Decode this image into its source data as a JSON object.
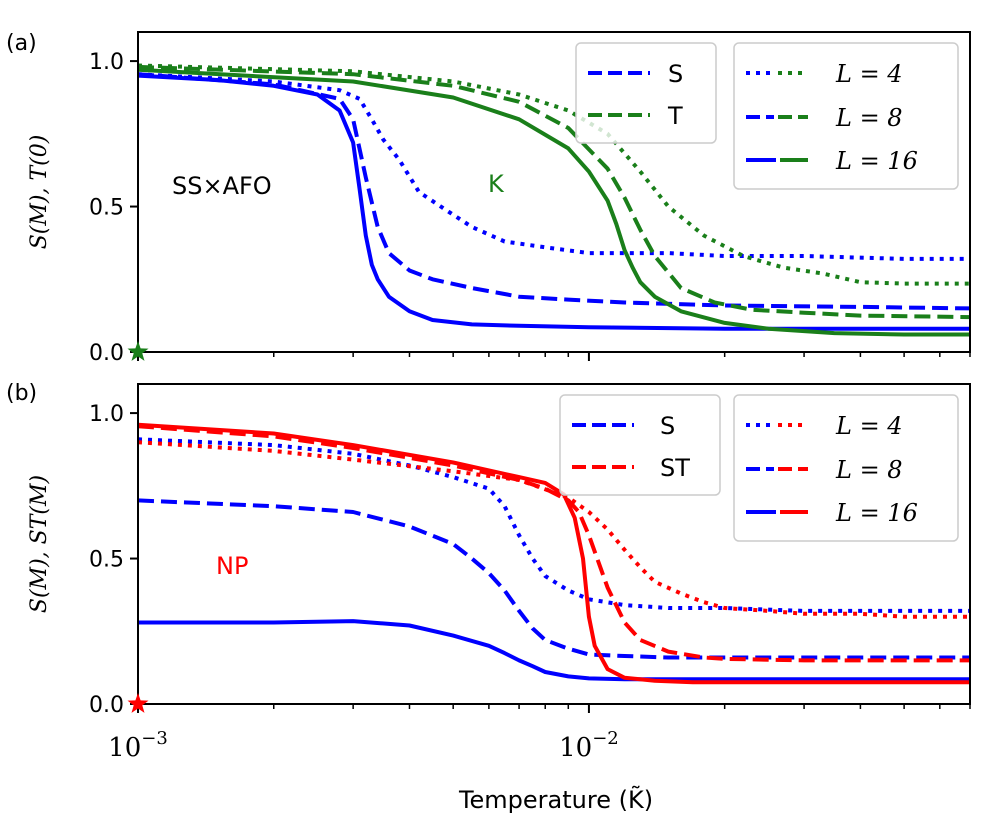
{
  "chart_data": [
    {
      "type": "line",
      "panel_label": "(a)",
      "ylabel": "S(M), T(0)",
      "ylim": [
        0,
        1.1
      ],
      "yticks": [
        "0.0",
        "0.5",
        "1.0"
      ],
      "xscale": "log",
      "xlim": [
        0.001,
        0.07
      ],
      "annotations": [
        {
          "text": "SS×AFO",
          "color": "#000000"
        },
        {
          "text": "K",
          "color": "#1a7f1a"
        }
      ],
      "star": {
        "x": 0.001,
        "y": 0.0,
        "color": "#1a7f1a"
      },
      "legend_quantity": [
        {
          "label": "S",
          "style": "dashed",
          "color": "#0000ff"
        },
        {
          "label": "T",
          "style": "dashed",
          "color": "#1a7f1a"
        }
      ],
      "legend_size": [
        {
          "label": "L = 4",
          "style": "dotted"
        },
        {
          "label": "L = 8",
          "style": "dashed"
        },
        {
          "label": "L = 16",
          "style": "solid"
        }
      ],
      "series": [
        {
          "name": "S, L=4",
          "color": "#0000ff",
          "style": "dotted",
          "x": [
            0.001,
            0.002,
            0.0028,
            0.0031,
            0.0033,
            0.0035,
            0.0038,
            0.0042,
            0.0048,
            0.0055,
            0.0065,
            0.008,
            0.01,
            0.015,
            0.02,
            0.03,
            0.05,
            0.07
          ],
          "y": [
            0.955,
            0.93,
            0.9,
            0.87,
            0.8,
            0.73,
            0.66,
            0.55,
            0.49,
            0.43,
            0.38,
            0.36,
            0.34,
            0.34,
            0.33,
            0.33,
            0.32,
            0.32
          ]
        },
        {
          "name": "S, L=8",
          "color": "#0000ff",
          "style": "dashed",
          "x": [
            0.001,
            0.002,
            0.0028,
            0.003,
            0.0032,
            0.0034,
            0.0036,
            0.004,
            0.0045,
            0.0055,
            0.007,
            0.009,
            0.012,
            0.02,
            0.04,
            0.07
          ],
          "y": [
            0.955,
            0.92,
            0.87,
            0.8,
            0.6,
            0.43,
            0.34,
            0.28,
            0.25,
            0.22,
            0.19,
            0.18,
            0.17,
            0.16,
            0.155,
            0.15
          ]
        },
        {
          "name": "S, L=16",
          "color": "#0000ff",
          "style": "solid",
          "x": [
            0.001,
            0.0015,
            0.002,
            0.0025,
            0.0028,
            0.003,
            0.0031,
            0.0032,
            0.0033,
            0.0034,
            0.0036,
            0.004,
            0.0045,
            0.0055,
            0.007,
            0.01,
            0.02,
            0.04,
            0.07
          ],
          "y": [
            0.95,
            0.935,
            0.915,
            0.885,
            0.83,
            0.72,
            0.56,
            0.4,
            0.3,
            0.25,
            0.19,
            0.14,
            0.11,
            0.095,
            0.09,
            0.085,
            0.08,
            0.08,
            0.08
          ]
        },
        {
          "name": "T, L=4",
          "color": "#1a7f1a",
          "style": "dotted",
          "x": [
            0.001,
            0.003,
            0.005,
            0.007,
            0.009,
            0.011,
            0.013,
            0.015,
            0.018,
            0.022,
            0.027,
            0.033,
            0.04,
            0.05,
            0.07
          ],
          "y": [
            0.985,
            0.965,
            0.93,
            0.885,
            0.83,
            0.75,
            0.62,
            0.5,
            0.4,
            0.33,
            0.29,
            0.27,
            0.24,
            0.235,
            0.235
          ]
        },
        {
          "name": "T, L=8",
          "color": "#1a7f1a",
          "style": "dashed",
          "x": [
            0.001,
            0.003,
            0.005,
            0.007,
            0.009,
            0.011,
            0.012,
            0.013,
            0.014,
            0.016,
            0.019,
            0.023,
            0.03,
            0.04,
            0.07
          ],
          "y": [
            0.98,
            0.955,
            0.915,
            0.86,
            0.77,
            0.63,
            0.53,
            0.42,
            0.33,
            0.22,
            0.17,
            0.145,
            0.135,
            0.125,
            0.12
          ]
        },
        {
          "name": "T, L=16",
          "color": "#1a7f1a",
          "style": "solid",
          "x": [
            0.001,
            0.003,
            0.005,
            0.007,
            0.009,
            0.01,
            0.011,
            0.0115,
            0.012,
            0.0125,
            0.013,
            0.014,
            0.016,
            0.02,
            0.025,
            0.035,
            0.05,
            0.07
          ],
          "y": [
            0.97,
            0.93,
            0.875,
            0.8,
            0.7,
            0.62,
            0.52,
            0.44,
            0.35,
            0.29,
            0.24,
            0.19,
            0.14,
            0.1,
            0.08,
            0.065,
            0.06,
            0.06
          ]
        }
      ]
    },
    {
      "type": "line",
      "panel_label": "(b)",
      "ylabel": "S(M), ST(M)",
      "ylim": [
        0,
        1.1
      ],
      "yticks": [
        "0.0",
        "0.5",
        "1.0"
      ],
      "xscale": "log",
      "xlim": [
        0.001,
        0.07
      ],
      "xticks": [
        "10^-3",
        "10^-2"
      ],
      "xlabel": "Temperature (K̃)",
      "annotations": [
        {
          "text": "NP",
          "color": "#ff0000"
        }
      ],
      "star": {
        "x": 0.001,
        "y": 0.0,
        "color": "#ff0000"
      },
      "legend_quantity": [
        {
          "label": "S",
          "style": "dashed",
          "color": "#0000ff"
        },
        {
          "label": "ST",
          "style": "dashed",
          "color": "#ff0000"
        }
      ],
      "legend_size": [
        {
          "label": "L = 4",
          "style": "dotted"
        },
        {
          "label": "L = 8",
          "style": "dashed"
        },
        {
          "label": "L = 16",
          "style": "solid"
        }
      ],
      "series": [
        {
          "name": "S, L=4",
          "color": "#0000ff",
          "style": "dotted",
          "x": [
            0.001,
            0.002,
            0.003,
            0.004,
            0.005,
            0.006,
            0.0065,
            0.007,
            0.0075,
            0.008,
            0.009,
            0.01,
            0.012,
            0.015,
            0.02,
            0.03,
            0.05,
            0.07
          ],
          "y": [
            0.91,
            0.89,
            0.86,
            0.82,
            0.78,
            0.74,
            0.68,
            0.58,
            0.5,
            0.44,
            0.39,
            0.36,
            0.34,
            0.33,
            0.33,
            0.32,
            0.32,
            0.32
          ]
        },
        {
          "name": "S, L=8",
          "color": "#0000ff",
          "style": "dashed",
          "x": [
            0.001,
            0.002,
            0.003,
            0.004,
            0.005,
            0.0055,
            0.006,
            0.0065,
            0.007,
            0.0075,
            0.008,
            0.009,
            0.01,
            0.012,
            0.015,
            0.02,
            0.03,
            0.07
          ],
          "y": [
            0.7,
            0.68,
            0.66,
            0.61,
            0.55,
            0.5,
            0.45,
            0.39,
            0.32,
            0.26,
            0.22,
            0.19,
            0.17,
            0.165,
            0.16,
            0.16,
            0.16,
            0.16
          ]
        },
        {
          "name": "S, L=16",
          "color": "#0000ff",
          "style": "solid",
          "x": [
            0.001,
            0.002,
            0.003,
            0.004,
            0.005,
            0.006,
            0.0065,
            0.007,
            0.0075,
            0.008,
            0.009,
            0.01,
            0.012,
            0.015,
            0.02,
            0.03,
            0.07
          ],
          "y": [
            0.28,
            0.28,
            0.285,
            0.27,
            0.235,
            0.2,
            0.175,
            0.15,
            0.13,
            0.11,
            0.095,
            0.088,
            0.085,
            0.085,
            0.085,
            0.085,
            0.085
          ]
        },
        {
          "name": "ST, L=4",
          "color": "#ff0000",
          "style": "dotted",
          "x": [
            0.001,
            0.002,
            0.003,
            0.005,
            0.007,
            0.009,
            0.01,
            0.011,
            0.012,
            0.013,
            0.014,
            0.016,
            0.018,
            0.02,
            0.025,
            0.03,
            0.04,
            0.05,
            0.07
          ],
          "y": [
            0.9,
            0.87,
            0.84,
            0.8,
            0.77,
            0.71,
            0.66,
            0.6,
            0.53,
            0.47,
            0.42,
            0.38,
            0.35,
            0.33,
            0.32,
            0.31,
            0.31,
            0.3,
            0.3
          ]
        },
        {
          "name": "ST, L=8",
          "color": "#ff0000",
          "style": "dashed",
          "x": [
            0.001,
            0.002,
            0.003,
            0.005,
            0.007,
            0.008,
            0.009,
            0.0095,
            0.01,
            0.011,
            0.012,
            0.013,
            0.015,
            0.018,
            0.02,
            0.03,
            0.05,
            0.07
          ],
          "y": [
            0.955,
            0.92,
            0.88,
            0.82,
            0.77,
            0.74,
            0.7,
            0.66,
            0.58,
            0.4,
            0.28,
            0.22,
            0.18,
            0.16,
            0.155,
            0.15,
            0.15,
            0.15
          ]
        },
        {
          "name": "ST, L=16",
          "color": "#ff0000",
          "style": "solid",
          "x": [
            0.001,
            0.002,
            0.003,
            0.005,
            0.007,
            0.008,
            0.0088,
            0.0093,
            0.0097,
            0.01,
            0.0103,
            0.011,
            0.012,
            0.014,
            0.017,
            0.02,
            0.03,
            0.05,
            0.07
          ],
          "y": [
            0.96,
            0.93,
            0.89,
            0.83,
            0.78,
            0.76,
            0.72,
            0.64,
            0.5,
            0.3,
            0.2,
            0.12,
            0.09,
            0.08,
            0.075,
            0.075,
            0.075,
            0.075,
            0.075
          ]
        }
      ]
    }
  ]
}
